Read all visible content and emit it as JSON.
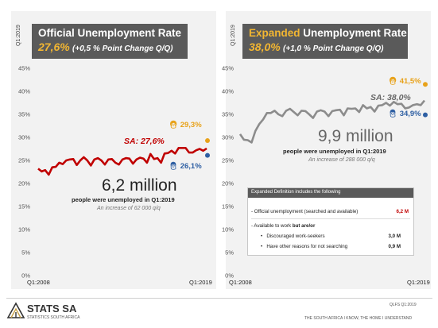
{
  "left": {
    "period_tag": "Q1:2019",
    "title": "Official Unemployment Rate",
    "rate": "27,6%",
    "change": "(+0,5 %  Point  Change Q/Q)",
    "big_number": "6,2 million",
    "description": "people were unemployed in Q1:2019",
    "increase": "An increase of 62 000 q/q",
    "sa_label": "SA: 27,6%",
    "female_label": "29,3%",
    "male_label": "26,1%"
  },
  "right": {
    "period_tag": "Q1:2019",
    "title_highlight": "Expanded",
    "title_rest": " Unemployment Rate",
    "rate": "38,0%",
    "change": "(+1,0 % Point Change Q/Q)",
    "big_number": "9,9 million",
    "description": "people were unemployed in Q1:2019",
    "increase": "An increase of 288 000 q/q",
    "sa_label": "SA: 38,0%",
    "female_label": "41,5%",
    "male_label": "34,9%"
  },
  "definition": {
    "header": "Expanded  Definition includes  the following",
    "row1_label": "- Official unemployment (searched and available)",
    "row1_value": "6,2 M",
    "row2_label_a": "- Available to work ",
    "row2_label_b": "but are/or",
    "bullet": "•",
    "row3_label": "Discouraged work-seekers",
    "row3_value": "3,0 M",
    "row4_label": "Have other reasons for not searching",
    "row4_value": "0,9 M"
  },
  "footer": {
    "logo": "STATS SA",
    "logo_sub": "STATISTICS SOUTH AFRICA",
    "source": "QLFS Q1:2019",
    "tagline": "THE SOUTH AFRICA I KNOW, THE HOME I UNDERSTAND"
  },
  "colors": {
    "official": "#c00000",
    "expanded": "#8c8c8c",
    "female": "#e8a21a",
    "male": "#2e5fa3",
    "title_bg": "#5a5a5a"
  },
  "chart_data": [
    {
      "type": "line",
      "title": "Official Unemployment Rate",
      "x_start": "Q1:2008",
      "x_end": "Q1:2019",
      "x_tick_labels": [
        "Q1:2008",
        "Q1:2019"
      ],
      "y_tick_labels": [
        "0%",
        "5%",
        "10%",
        "15%",
        "20%",
        "25%",
        "30%",
        "35%",
        "40%",
        "45%"
      ],
      "ylim": [
        0,
        45
      ],
      "grid": false,
      "series": [
        {
          "name": "SA",
          "color": "#c00000",
          "values": [
            23.2,
            22.6,
            22.9,
            21.9,
            23.5,
            23.6,
            24.5,
            24.2,
            25.0,
            25.2,
            25.3,
            24.0,
            25.0,
            25.7,
            25.0,
            23.9,
            25.2,
            25.5,
            25.0,
            24.1,
            25.2,
            25.3,
            24.5,
            24.1,
            25.2,
            25.5,
            25.4,
            24.3,
            25.2,
            25.6,
            25.4,
            24.5,
            26.4,
            25.3,
            25.5,
            24.5,
            26.5,
            26.6,
            27.1,
            26.5,
            27.7,
            27.7,
            27.7,
            26.7,
            26.7,
            27.2,
            27.5,
            27.1,
            27.6
          ]
        }
      ],
      "markers": [
        {
          "name": "Female",
          "value": 29.3,
          "color": "#e8a21a"
        },
        {
          "name": "Male",
          "value": 26.1,
          "color": "#2e5fa3"
        }
      ]
    },
    {
      "type": "line",
      "title": "Expanded Unemployment Rate",
      "x_start": "Q1:2008",
      "x_end": "Q1:2019",
      "x_tick_labels": [
        "Q1:2008",
        "Q1:2019"
      ],
      "y_tick_labels": [
        "0%",
        "5%",
        "10%",
        "15%",
        "20%",
        "25%",
        "30%",
        "35%",
        "40%",
        "45%"
      ],
      "ylim": [
        0,
        45
      ],
      "grid": false,
      "series": [
        {
          "name": "SA",
          "color": "#8c8c8c",
          "values": [
            30.7,
            29.5,
            29.4,
            28.9,
            31.4,
            32.9,
            33.9,
            35.3,
            35.3,
            35.8,
            35.0,
            34.6,
            35.8,
            36.2,
            35.5,
            34.8,
            35.8,
            35.7,
            35.0,
            34.2,
            35.6,
            35.9,
            35.6,
            34.6,
            35.7,
            35.9,
            36.0,
            34.8,
            36.3,
            36.2,
            36.3,
            35.5,
            37.0,
            36.3,
            36.6,
            35.6,
            36.9,
            37.0,
            37.5,
            36.9,
            37.7,
            37.2,
            37.3,
            36.3,
            36.5,
            37.0,
            37.2,
            37.0,
            38.0
          ]
        }
      ],
      "markers": [
        {
          "name": "Female",
          "value": 41.5,
          "color": "#e8a21a"
        },
        {
          "name": "Male",
          "value": 34.9,
          "color": "#2e5fa3"
        }
      ]
    }
  ]
}
